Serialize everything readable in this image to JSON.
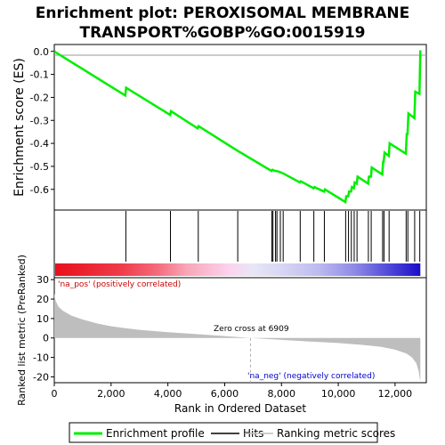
{
  "chart_data": {
    "type": "line",
    "title_line1": "Enrichment plot: PEROXISOMAL MEMBRANE",
    "title_line2": "TRANSPORT%GOBP%GO:0015919",
    "es_panel": {
      "ylabel": "Enrichment score (ES)",
      "ylim": [
        -0.69,
        0.03
      ],
      "yticks": [
        0.0,
        -0.1,
        -0.2,
        -0.3,
        -0.4,
        -0.5,
        -0.6
      ],
      "ytick_labels": [
        "0.0",
        "-0.1",
        "-0.2",
        "-0.3",
        "-0.4",
        "-0.5",
        "-0.6"
      ],
      "series_name": "Enrichment profile",
      "color": "#00ee00",
      "points": [
        [
          0,
          0.0
        ],
        [
          2500,
          -0.192
        ],
        [
          2530,
          -0.158
        ],
        [
          4080,
          -0.276
        ],
        [
          4110,
          -0.26
        ],
        [
          5050,
          -0.335
        ],
        [
          5080,
          -0.325
        ],
        [
          6450,
          -0.432
        ],
        [
          7650,
          -0.52
        ],
        [
          7680,
          -0.515
        ],
        [
          7780,
          -0.52
        ],
        [
          7830,
          -0.52
        ],
        [
          7950,
          -0.525
        ],
        [
          8050,
          -0.53
        ],
        [
          8650,
          -0.57
        ],
        [
          8680,
          -0.565
        ],
        [
          9130,
          -0.595
        ],
        [
          9160,
          -0.59
        ],
        [
          9500,
          -0.61
        ],
        [
          9530,
          -0.6
        ],
        [
          10250,
          -0.655
        ],
        [
          10280,
          -0.63
        ],
        [
          10350,
          -0.63
        ],
        [
          10380,
          -0.61
        ],
        [
          10450,
          -0.61
        ],
        [
          10480,
          -0.59
        ],
        [
          10550,
          -0.595
        ],
        [
          10580,
          -0.57
        ],
        [
          10650,
          -0.575
        ],
        [
          10680,
          -0.545
        ],
        [
          11050,
          -0.575
        ],
        [
          11080,
          -0.545
        ],
        [
          11150,
          -0.545
        ],
        [
          11180,
          -0.505
        ],
        [
          11550,
          -0.535
        ],
        [
          11580,
          -0.48
        ],
        [
          11600,
          -0.48
        ],
        [
          11630,
          -0.44
        ],
        [
          11780,
          -0.455
        ],
        [
          11810,
          -0.4
        ],
        [
          12380,
          -0.445
        ],
        [
          12410,
          -0.36
        ],
        [
          12440,
          -0.36
        ],
        [
          12470,
          -0.27
        ],
        [
          12680,
          -0.29
        ],
        [
          12710,
          -0.175
        ],
        [
          12860,
          -0.185
        ],
        [
          12890,
          0.005
        ]
      ]
    },
    "hits_panel": {
      "hit_positions": [
        2520,
        4090,
        5070,
        6460,
        7660,
        7700,
        7790,
        7840,
        7960,
        8060,
        8660,
        9140,
        9510,
        10260,
        10360,
        10460,
        10560,
        10660,
        11060,
        11160,
        11560,
        11610,
        11790,
        12390,
        12450,
        12690,
        12870
      ]
    },
    "metric_panel": {
      "ylabel": "Ranked list metric (PreRanked)",
      "ylim": [
        -23,
        31
      ],
      "yticks": [
        30,
        20,
        10,
        0,
        -10,
        -20
      ],
      "ytick_labels": [
        "30",
        "20",
        "10",
        "0",
        "-10",
        "-20"
      ],
      "pos_label": "'na_pos' (positively correlated)",
      "neg_label": "'na_neg' (negatively correlated)",
      "zero_cross_label": "Zero cross at 6909",
      "zero_cross": 6909,
      "fill_color": "#bebebe",
      "curve": [
        [
          0,
          23
        ],
        [
          50,
          19
        ],
        [
          150,
          16
        ],
        [
          300,
          14
        ],
        [
          600,
          11.5
        ],
        [
          1000,
          9.5
        ],
        [
          1500,
          7.5
        ],
        [
          2000,
          6
        ],
        [
          2500,
          5
        ],
        [
          3000,
          4.2
        ],
        [
          4000,
          3
        ],
        [
          5000,
          2
        ],
        [
          6000,
          1
        ],
        [
          6909,
          0
        ],
        [
          8000,
          -1
        ],
        [
          9000,
          -1.8
        ],
        [
          10000,
          -2.6
        ],
        [
          10800,
          -3.5
        ],
        [
          11500,
          -4.5
        ],
        [
          12000,
          -6
        ],
        [
          12400,
          -8
        ],
        [
          12600,
          -10
        ],
        [
          12750,
          -13
        ],
        [
          12830,
          -17
        ],
        [
          12870,
          -21
        ],
        [
          12890,
          -22
        ]
      ]
    },
    "xaxis": {
      "xlabel": "Rank in Ordered Dataset",
      "xlim": [
        0,
        13100
      ],
      "ticks": [
        0,
        2000,
        4000,
        6000,
        8000,
        10000,
        12000
      ],
      "tick_labels": [
        "0",
        "2,000",
        "4,000",
        "6,000",
        "8,000",
        "10,000",
        "12,000"
      ]
    },
    "legend": {
      "items": [
        {
          "label": "Enrichment profile",
          "color": "#00ee00"
        },
        {
          "label": "Hits",
          "color": "#000000"
        },
        {
          "label": "Ranking metric scores",
          "color": "#bebebe"
        }
      ]
    }
  }
}
